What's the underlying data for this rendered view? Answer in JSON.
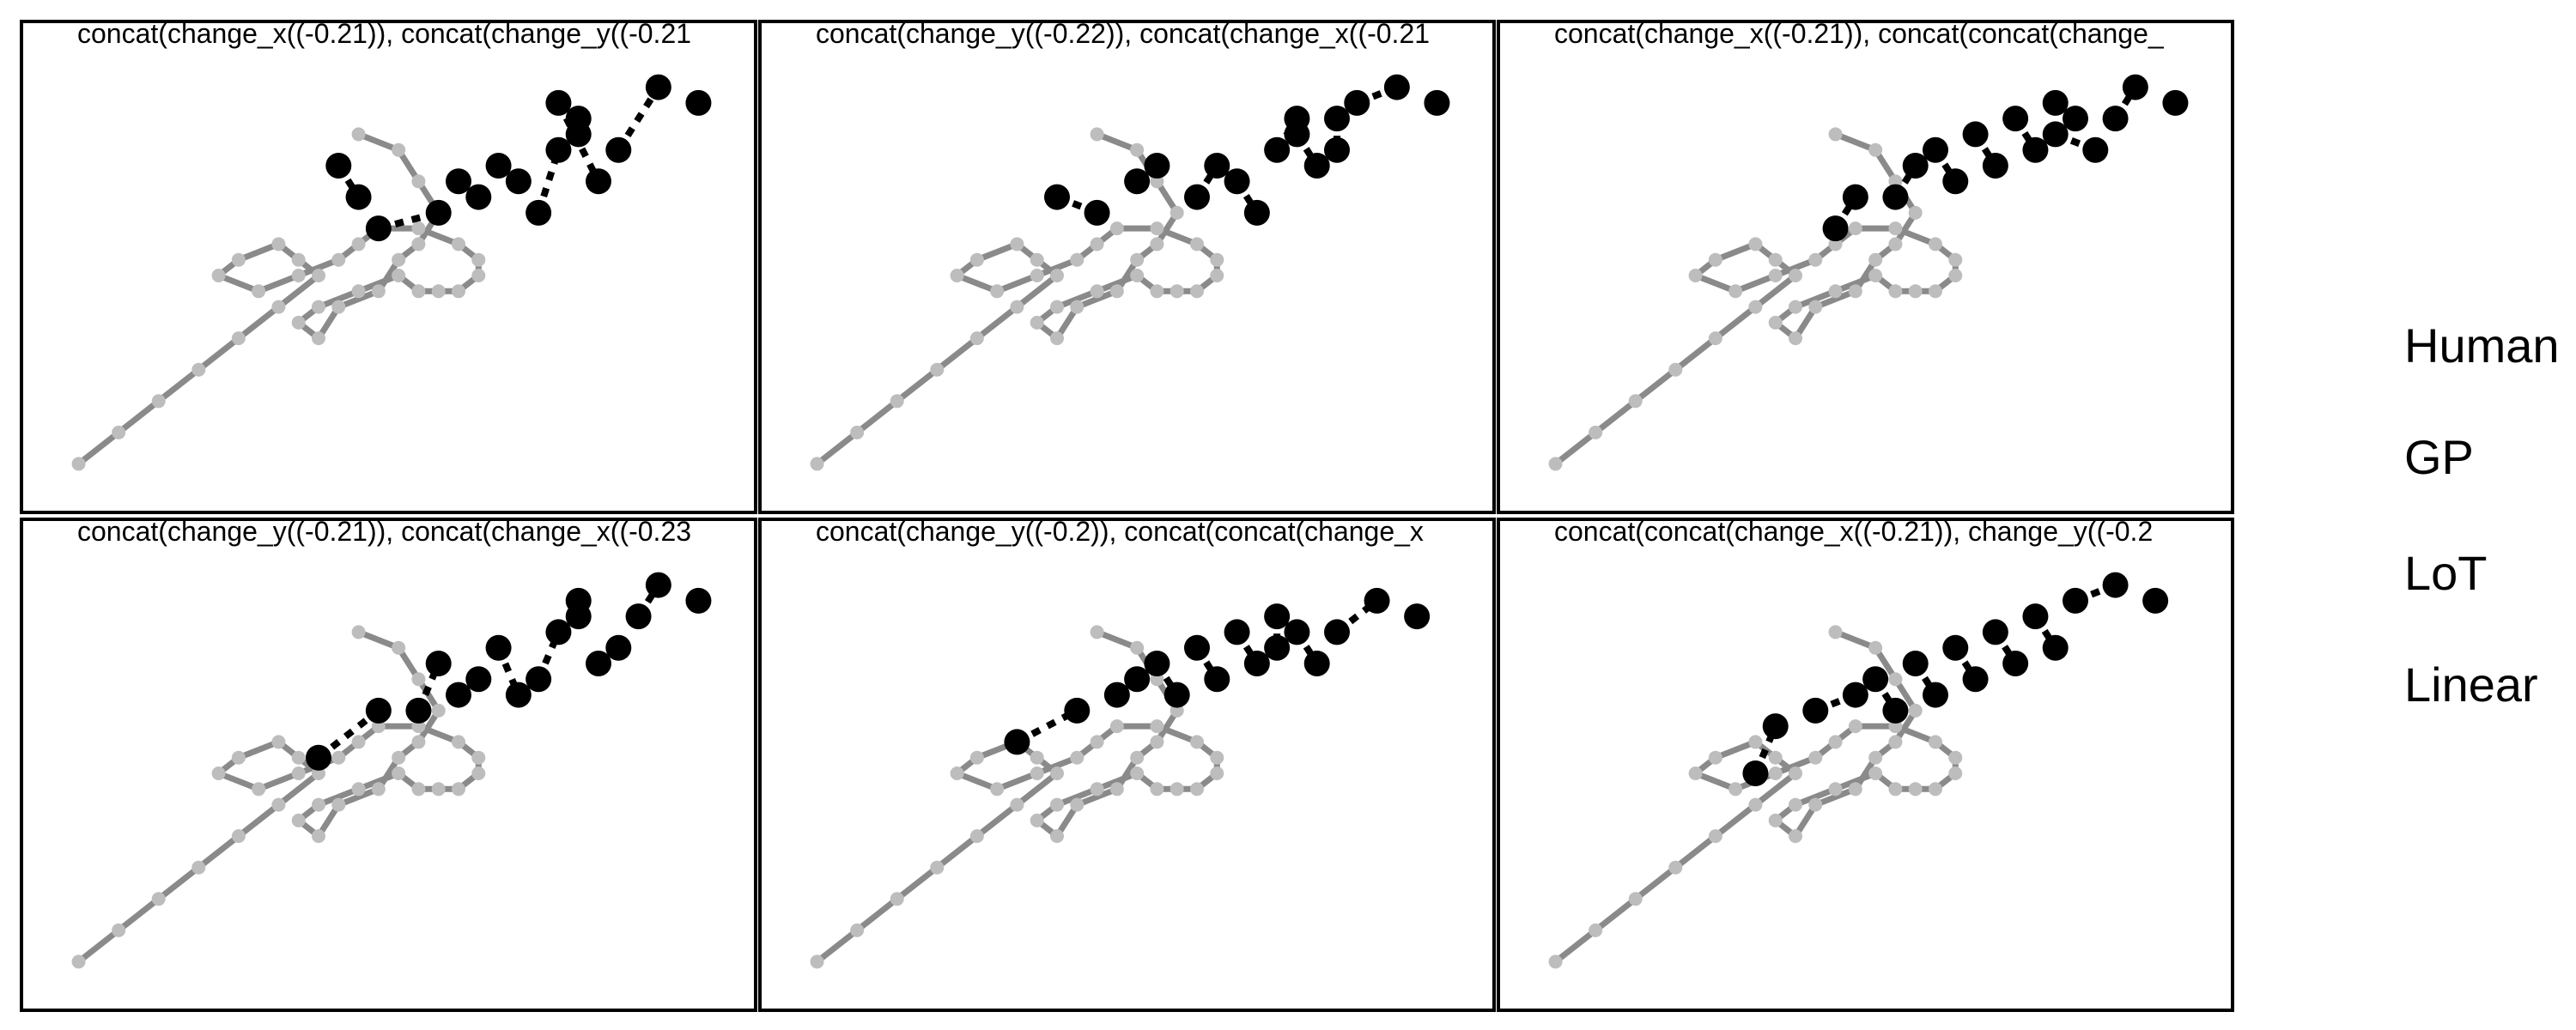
{
  "colors": {
    "human": "#000000",
    "model": "#8a8a8a",
    "model_light": "#bdbdbd",
    "frame": "#000000"
  },
  "legend": {
    "items": [
      "Human",
      "GP",
      "LoT",
      "Linear"
    ]
  },
  "chart_data": [
    {
      "type": "scatter",
      "title": "concat(change_x((-0.21)), concat(change_y((-0.21",
      "model_path": [
        [
          -10,
          -10
        ],
        [
          -8,
          -8
        ],
        [
          -6,
          -6
        ],
        [
          -4,
          -4
        ],
        [
          -2,
          -2
        ],
        [
          0,
          0
        ],
        [
          2,
          2
        ],
        [
          1,
          3
        ],
        [
          0,
          4
        ],
        [
          -2,
          3
        ],
        [
          -3,
          2
        ],
        [
          -1,
          1
        ],
        [
          1,
          2
        ],
        [
          3,
          3
        ],
        [
          4,
          4
        ],
        [
          5,
          5
        ],
        [
          7,
          5
        ],
        [
          9,
          4
        ],
        [
          10,
          3
        ],
        [
          10,
          2
        ],
        [
          9,
          1
        ],
        [
          8,
          1
        ],
        [
          7,
          1
        ],
        [
          6,
          2
        ],
        [
          4,
          1
        ],
        [
          2,
          0
        ],
        [
          1,
          -1
        ],
        [
          2,
          -2
        ],
        [
          3,
          0
        ],
        [
          5,
          1
        ],
        [
          6,
          3
        ],
        [
          7,
          4
        ],
        [
          8,
          6
        ],
        [
          7,
          8
        ],
        [
          6,
          10
        ],
        [
          4,
          11
        ]
      ],
      "human_path": [
        [
          0,
          0
        ],
        [
          2,
          2
        ],
        [
          4,
          4
        ],
        [
          6,
          6
        ],
        [
          8,
          8
        ],
        [
          10,
          10
        ],
        [
          12,
          12
        ],
        [
          14,
          14
        ],
        [
          16,
          16
        ],
        [
          18,
          18
        ],
        [
          20,
          20
        ],
        [
          22,
          22
        ],
        [
          24,
          24
        ],
        [
          26,
          26
        ],
        [
          28,
          28
        ],
        [
          30,
          30
        ],
        [
          32,
          32
        ],
        [
          34,
          34
        ],
        [
          36,
          36
        ],
        [
          38,
          38
        ]
      ],
      "human_points": [
        [
          3,
          9
        ],
        [
          4,
          7
        ],
        [
          5,
          5
        ],
        [
          8,
          6
        ],
        [
          9,
          8
        ],
        [
          10,
          7
        ],
        [
          11,
          9
        ],
        [
          12,
          8
        ],
        [
          13,
          6
        ],
        [
          14,
          10
        ],
        [
          15,
          12
        ],
        [
          15,
          11
        ],
        [
          14,
          13
        ],
        [
          16,
          8
        ],
        [
          17,
          10
        ],
        [
          19,
          14
        ],
        [
          21,
          13
        ]
      ]
    },
    {
      "type": "scatter",
      "title": "concat(change_y((-0.22)), concat(change_x((-0.21",
      "model_path": [
        [
          -10,
          -10
        ],
        [
          -8,
          -8
        ],
        [
          -6,
          -6
        ],
        [
          -4,
          -4
        ],
        [
          -2,
          -2
        ],
        [
          0,
          0
        ],
        [
          2,
          2
        ],
        [
          1,
          3
        ],
        [
          0,
          4
        ],
        [
          -2,
          3
        ],
        [
          -3,
          2
        ],
        [
          -1,
          1
        ],
        [
          1,
          2
        ],
        [
          3,
          3
        ],
        [
          4,
          4
        ],
        [
          5,
          5
        ],
        [
          7,
          5
        ],
        [
          9,
          4
        ],
        [
          10,
          3
        ],
        [
          10,
          2
        ],
        [
          9,
          1
        ],
        [
          8,
          1
        ],
        [
          7,
          1
        ],
        [
          6,
          2
        ],
        [
          4,
          1
        ],
        [
          2,
          0
        ],
        [
          1,
          -1
        ],
        [
          2,
          -2
        ],
        [
          3,
          0
        ],
        [
          5,
          1
        ],
        [
          6,
          3
        ],
        [
          7,
          4
        ],
        [
          8,
          6
        ],
        [
          7,
          8
        ],
        [
          6,
          10
        ],
        [
          4,
          11
        ]
      ],
      "human_points": [
        [
          2,
          7
        ],
        [
          4,
          6
        ],
        [
          6,
          8
        ],
        [
          7,
          9
        ],
        [
          9,
          7
        ],
        [
          10,
          9
        ],
        [
          11,
          8
        ],
        [
          12,
          6
        ],
        [
          13,
          10
        ],
        [
          14,
          12
        ],
        [
          14,
          11
        ],
        [
          15,
          9
        ],
        [
          16,
          12
        ],
        [
          16,
          10
        ],
        [
          17,
          13
        ],
        [
          19,
          14
        ],
        [
          21,
          13
        ]
      ]
    },
    {
      "type": "scatter",
      "title": "concat(change_x((-0.21)), concat(concat(change_",
      "model_path": [
        [
          -10,
          -10
        ],
        [
          -8,
          -8
        ],
        [
          -6,
          -6
        ],
        [
          -4,
          -4
        ],
        [
          -2,
          -2
        ],
        [
          0,
          0
        ],
        [
          2,
          2
        ],
        [
          1,
          3
        ],
        [
          0,
          4
        ],
        [
          -2,
          3
        ],
        [
          -3,
          2
        ],
        [
          -1,
          1
        ],
        [
          1,
          2
        ],
        [
          3,
          3
        ],
        [
          4,
          4
        ],
        [
          5,
          5
        ],
        [
          7,
          5
        ],
        [
          9,
          4
        ],
        [
          10,
          3
        ],
        [
          10,
          2
        ],
        [
          9,
          1
        ],
        [
          8,
          1
        ],
        [
          7,
          1
        ],
        [
          6,
          2
        ],
        [
          4,
          1
        ],
        [
          2,
          0
        ],
        [
          1,
          -1
        ],
        [
          2,
          -2
        ],
        [
          3,
          0
        ],
        [
          5,
          1
        ],
        [
          6,
          3
        ],
        [
          7,
          4
        ],
        [
          8,
          6
        ],
        [
          7,
          8
        ],
        [
          6,
          10
        ],
        [
          4,
          11
        ]
      ],
      "human_points": [
        [
          4,
          5
        ],
        [
          5,
          7
        ],
        [
          7,
          7
        ],
        [
          8,
          9
        ],
        [
          9,
          10
        ],
        [
          10,
          8
        ],
        [
          11,
          11
        ],
        [
          12,
          9
        ],
        [
          13,
          12
        ],
        [
          14,
          10
        ],
        [
          15,
          13
        ],
        [
          16,
          12
        ],
        [
          15,
          11
        ],
        [
          17,
          10
        ],
        [
          18,
          12
        ],
        [
          19,
          14
        ],
        [
          21,
          13
        ]
      ]
    },
    {
      "type": "scatter",
      "title": "concat(change_y((-0.21)), concat(change_x((-0.23",
      "model_path": [
        [
          -10,
          -10
        ],
        [
          -8,
          -8
        ],
        [
          -6,
          -6
        ],
        [
          -4,
          -4
        ],
        [
          -2,
          -2
        ],
        [
          0,
          0
        ],
        [
          2,
          2
        ],
        [
          1,
          3
        ],
        [
          0,
          4
        ],
        [
          -2,
          3
        ],
        [
          -3,
          2
        ],
        [
          -1,
          1
        ],
        [
          1,
          2
        ],
        [
          3,
          3
        ],
        [
          4,
          4
        ],
        [
          5,
          5
        ],
        [
          7,
          5
        ],
        [
          9,
          4
        ],
        [
          10,
          3
        ],
        [
          10,
          2
        ],
        [
          9,
          1
        ],
        [
          8,
          1
        ],
        [
          7,
          1
        ],
        [
          6,
          2
        ],
        [
          4,
          1
        ],
        [
          2,
          0
        ],
        [
          1,
          -1
        ],
        [
          2,
          -2
        ],
        [
          3,
          0
        ],
        [
          5,
          1
        ],
        [
          6,
          3
        ],
        [
          7,
          4
        ],
        [
          8,
          6
        ],
        [
          7,
          8
        ],
        [
          6,
          10
        ],
        [
          4,
          11
        ]
      ],
      "human_points": [
        [
          2,
          3
        ],
        [
          5,
          6
        ],
        [
          7,
          6
        ],
        [
          8,
          9
        ],
        [
          9,
          7
        ],
        [
          10,
          8
        ],
        [
          11,
          10
        ],
        [
          12,
          7
        ],
        [
          13,
          8
        ],
        [
          14,
          11
        ],
        [
          15,
          13
        ],
        [
          15,
          12
        ],
        [
          16,
          9
        ],
        [
          17,
          10
        ],
        [
          18,
          12
        ],
        [
          19,
          14
        ],
        [
          21,
          13
        ]
      ]
    },
    {
      "type": "scatter",
      "title": "concat(change_y((-0.2)), concat(concat(change_x",
      "model_path": [
        [
          -10,
          -10
        ],
        [
          -8,
          -8
        ],
        [
          -6,
          -6
        ],
        [
          -4,
          -4
        ],
        [
          -2,
          -2
        ],
        [
          0,
          0
        ],
        [
          2,
          2
        ],
        [
          1,
          3
        ],
        [
          0,
          4
        ],
        [
          -2,
          3
        ],
        [
          -3,
          2
        ],
        [
          -1,
          1
        ],
        [
          1,
          2
        ],
        [
          3,
          3
        ],
        [
          4,
          4
        ],
        [
          5,
          5
        ],
        [
          7,
          5
        ],
        [
          9,
          4
        ],
        [
          10,
          3
        ],
        [
          10,
          2
        ],
        [
          9,
          1
        ],
        [
          8,
          1
        ],
        [
          7,
          1
        ],
        [
          6,
          2
        ],
        [
          4,
          1
        ],
        [
          2,
          0
        ],
        [
          1,
          -1
        ],
        [
          2,
          -2
        ],
        [
          3,
          0
        ],
        [
          5,
          1
        ],
        [
          6,
          3
        ],
        [
          7,
          4
        ],
        [
          8,
          6
        ],
        [
          7,
          8
        ],
        [
          6,
          10
        ],
        [
          4,
          11
        ]
      ],
      "human_points": [
        [
          0,
          4
        ],
        [
          3,
          6
        ],
        [
          5,
          7
        ],
        [
          6,
          8
        ],
        [
          7,
          9
        ],
        [
          8,
          7
        ],
        [
          9,
          10
        ],
        [
          10,
          8
        ],
        [
          11,
          11
        ],
        [
          12,
          9
        ],
        [
          13,
          12
        ],
        [
          13,
          10
        ],
        [
          14,
          11
        ],
        [
          15,
          9
        ],
        [
          16,
          11
        ],
        [
          18,
          13
        ],
        [
          20,
          12
        ]
      ]
    },
    {
      "type": "scatter",
      "title": "concat(concat(change_x((-0.21)), change_y((-0.2",
      "model_path": [
        [
          -10,
          -10
        ],
        [
          -8,
          -8
        ],
        [
          -6,
          -6
        ],
        [
          -4,
          -4
        ],
        [
          -2,
          -2
        ],
        [
          0,
          0
        ],
        [
          2,
          2
        ],
        [
          1,
          3
        ],
        [
          0,
          4
        ],
        [
          -2,
          3
        ],
        [
          -3,
          2
        ],
        [
          -1,
          1
        ],
        [
          1,
          2
        ],
        [
          3,
          3
        ],
        [
          4,
          4
        ],
        [
          5,
          5
        ],
        [
          7,
          5
        ],
        [
          9,
          4
        ],
        [
          10,
          3
        ],
        [
          10,
          2
        ],
        [
          9,
          1
        ],
        [
          8,
          1
        ],
        [
          7,
          1
        ],
        [
          6,
          2
        ],
        [
          4,
          1
        ],
        [
          2,
          0
        ],
        [
          1,
          -1
        ],
        [
          2,
          -2
        ],
        [
          3,
          0
        ],
        [
          5,
          1
        ],
        [
          6,
          3
        ],
        [
          7,
          4
        ],
        [
          8,
          6
        ],
        [
          7,
          8
        ],
        [
          6,
          10
        ],
        [
          4,
          11
        ]
      ],
      "human_points": [
        [
          0,
          2
        ],
        [
          1,
          5
        ],
        [
          3,
          6
        ],
        [
          5,
          7
        ],
        [
          6,
          8
        ],
        [
          7,
          6
        ],
        [
          8,
          9
        ],
        [
          9,
          7
        ],
        [
          10,
          10
        ],
        [
          11,
          8
        ],
        [
          12,
          11
        ],
        [
          13,
          9
        ],
        [
          14,
          12
        ],
        [
          15,
          10
        ],
        [
          16,
          13
        ],
        [
          18,
          14
        ],
        [
          20,
          13
        ]
      ]
    }
  ]
}
